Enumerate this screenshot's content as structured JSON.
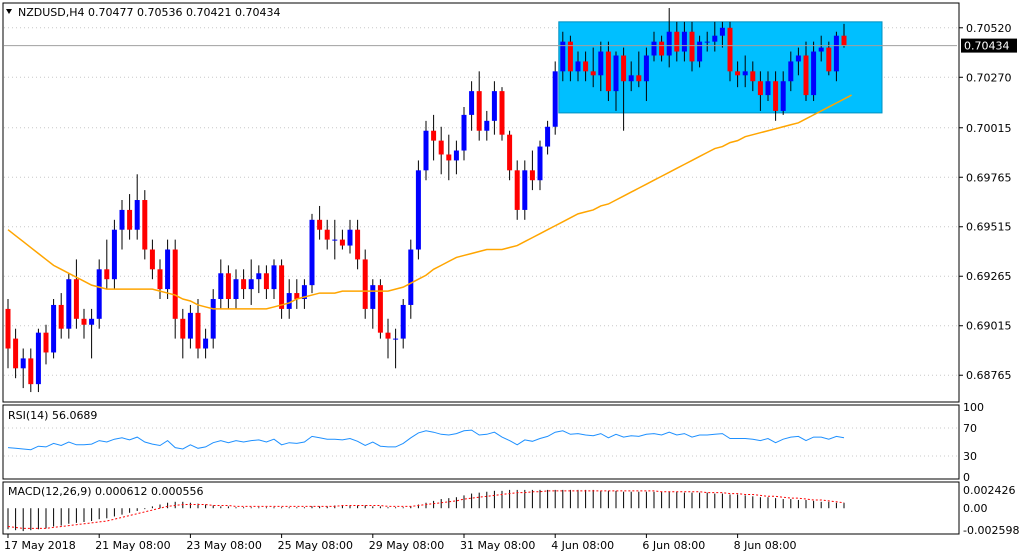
{
  "symbol_header": "NZDUSD,H4  0.70477 0.70536 0.70421 0.70434",
  "current_price_label": "0.70434",
  "colors": {
    "bull": "#0000ff",
    "bear": "#ff0000",
    "ma": "#ffa500",
    "rect": "#00bfff",
    "rsi": "#1e90ff",
    "macd_hist": "#000000",
    "macd_signal": "#ff0000",
    "grid": "#c8c8c8"
  },
  "rsi_label": "RSI(14) 56.0689",
  "rsi_scale": [
    "100",
    "70",
    "30",
    "0"
  ],
  "macd_label": "MACD(12,26,9) 0.000612 0.000556",
  "macd_scale": [
    "0.002426",
    "0.00",
    "-0.002598"
  ],
  "chart_data": {
    "type": "candlestick",
    "title": "NZDUSD,H4",
    "ylim": [
      0.6865,
      0.7063
    ],
    "y_ticks": [
      "0.70520",
      "0.70270",
      "0.70015",
      "0.69765",
      "0.69515",
      "0.69265",
      "0.69015",
      "0.68765"
    ],
    "x_ticks": [
      "17 May 2018",
      "21 May 08:00",
      "23 May 08:00",
      "25 May 08:00",
      "29 May 08:00",
      "31 May 08:00",
      "4 Jun 08:00",
      "6 Jun 08:00",
      "8 Jun 08:00"
    ],
    "consolidation_zone": [
      0.7009,
      0.7055
    ],
    "candles": [
      {
        "o": 0.691,
        "h": 0.6915,
        "l": 0.688,
        "c": 0.689
      },
      {
        "o": 0.6895,
        "h": 0.69,
        "l": 0.6875,
        "c": 0.688
      },
      {
        "o": 0.688,
        "h": 0.689,
        "l": 0.687,
        "c": 0.6885
      },
      {
        "o": 0.6885,
        "h": 0.689,
        "l": 0.6868,
        "c": 0.6872
      },
      {
        "o": 0.6872,
        "h": 0.69,
        "l": 0.6868,
        "c": 0.6898
      },
      {
        "o": 0.6898,
        "h": 0.6902,
        "l": 0.6882,
        "c": 0.6888
      },
      {
        "o": 0.6888,
        "h": 0.6915,
        "l": 0.6885,
        "c": 0.6912
      },
      {
        "o": 0.6912,
        "h": 0.6918,
        "l": 0.6895,
        "c": 0.69
      },
      {
        "o": 0.69,
        "h": 0.6928,
        "l": 0.6895,
        "c": 0.6925
      },
      {
        "o": 0.6925,
        "h": 0.6935,
        "l": 0.69,
        "c": 0.6905
      },
      {
        "o": 0.6905,
        "h": 0.691,
        "l": 0.6895,
        "c": 0.6902
      },
      {
        "o": 0.6902,
        "h": 0.691,
        "l": 0.6885,
        "c": 0.6905
      },
      {
        "o": 0.6905,
        "h": 0.6935,
        "l": 0.69,
        "c": 0.693
      },
      {
        "o": 0.693,
        "h": 0.6945,
        "l": 0.692,
        "c": 0.6925
      },
      {
        "o": 0.6925,
        "h": 0.6955,
        "l": 0.692,
        "c": 0.695
      },
      {
        "o": 0.695,
        "h": 0.6965,
        "l": 0.694,
        "c": 0.696
      },
      {
        "o": 0.696,
        "h": 0.6968,
        "l": 0.6945,
        "c": 0.695
      },
      {
        "o": 0.695,
        "h": 0.6978,
        "l": 0.6945,
        "c": 0.6965
      },
      {
        "o": 0.6965,
        "h": 0.697,
        "l": 0.6935,
        "c": 0.694
      },
      {
        "o": 0.694,
        "h": 0.6945,
        "l": 0.6925,
        "c": 0.693
      },
      {
        "o": 0.693,
        "h": 0.6935,
        "l": 0.6915,
        "c": 0.692
      },
      {
        "o": 0.692,
        "h": 0.6945,
        "l": 0.6915,
        "c": 0.694
      },
      {
        "o": 0.694,
        "h": 0.6945,
        "l": 0.6895,
        "c": 0.6905
      },
      {
        "o": 0.6905,
        "h": 0.691,
        "l": 0.6885,
        "c": 0.6895
      },
      {
        "o": 0.6895,
        "h": 0.6912,
        "l": 0.689,
        "c": 0.6908
      },
      {
        "o": 0.6908,
        "h": 0.6915,
        "l": 0.6885,
        "c": 0.689
      },
      {
        "o": 0.689,
        "h": 0.69,
        "l": 0.6885,
        "c": 0.6895
      },
      {
        "o": 0.6895,
        "h": 0.692,
        "l": 0.689,
        "c": 0.6915
      },
      {
        "o": 0.6915,
        "h": 0.6935,
        "l": 0.691,
        "c": 0.6928
      },
      {
        "o": 0.6928,
        "h": 0.6932,
        "l": 0.691,
        "c": 0.6915
      },
      {
        "o": 0.6915,
        "h": 0.693,
        "l": 0.691,
        "c": 0.6925
      },
      {
        "o": 0.6925,
        "h": 0.693,
        "l": 0.6915,
        "c": 0.692
      },
      {
        "o": 0.692,
        "h": 0.6935,
        "l": 0.6912,
        "c": 0.6925
      },
      {
        "o": 0.6925,
        "h": 0.6932,
        "l": 0.6918,
        "c": 0.6928
      },
      {
        "o": 0.6928,
        "h": 0.6932,
        "l": 0.6915,
        "c": 0.692
      },
      {
        "o": 0.692,
        "h": 0.6935,
        "l": 0.6915,
        "c": 0.6932
      },
      {
        "o": 0.6932,
        "h": 0.6935,
        "l": 0.6905,
        "c": 0.691
      },
      {
        "o": 0.691,
        "h": 0.6925,
        "l": 0.6905,
        "c": 0.6918
      },
      {
        "o": 0.6918,
        "h": 0.6925,
        "l": 0.691,
        "c": 0.6915
      },
      {
        "o": 0.6915,
        "h": 0.6925,
        "l": 0.691,
        "c": 0.6922
      },
      {
        "o": 0.6922,
        "h": 0.6958,
        "l": 0.6918,
        "c": 0.6955
      },
      {
        "o": 0.6955,
        "h": 0.6962,
        "l": 0.6945,
        "c": 0.695
      },
      {
        "o": 0.695,
        "h": 0.6955,
        "l": 0.694,
        "c": 0.6945
      },
      {
        "o": 0.6945,
        "h": 0.6955,
        "l": 0.6935,
        "c": 0.6945
      },
      {
        "o": 0.6945,
        "h": 0.695,
        "l": 0.694,
        "c": 0.6942
      },
      {
        "o": 0.6942,
        "h": 0.6955,
        "l": 0.6938,
        "c": 0.695
      },
      {
        "o": 0.695,
        "h": 0.6955,
        "l": 0.693,
        "c": 0.6935
      },
      {
        "o": 0.6935,
        "h": 0.694,
        "l": 0.6905,
        "c": 0.691
      },
      {
        "o": 0.691,
        "h": 0.6925,
        "l": 0.69,
        "c": 0.6922
      },
      {
        "o": 0.6922,
        "h": 0.6925,
        "l": 0.6895,
        "c": 0.6898
      },
      {
        "o": 0.6898,
        "h": 0.6905,
        "l": 0.6885,
        "c": 0.6895
      },
      {
        "o": 0.6895,
        "h": 0.69,
        "l": 0.688,
        "c": 0.6895
      },
      {
        "o": 0.6895,
        "h": 0.6915,
        "l": 0.689,
        "c": 0.6912
      },
      {
        "o": 0.6912,
        "h": 0.6945,
        "l": 0.6905,
        "c": 0.694
      },
      {
        "o": 0.694,
        "h": 0.6985,
        "l": 0.6935,
        "c": 0.698
      },
      {
        "o": 0.698,
        "h": 0.7005,
        "l": 0.6975,
        "c": 0.7
      },
      {
        "o": 0.7,
        "h": 0.7008,
        "l": 0.6985,
        "c": 0.6995
      },
      {
        "o": 0.6995,
        "h": 0.7002,
        "l": 0.6978,
        "c": 0.6988
      },
      {
        "o": 0.6988,
        "h": 0.6998,
        "l": 0.6975,
        "c": 0.6985
      },
      {
        "o": 0.6985,
        "h": 0.6995,
        "l": 0.6978,
        "c": 0.699
      },
      {
        "o": 0.699,
        "h": 0.7012,
        "l": 0.6985,
        "c": 0.7008
      },
      {
        "o": 0.7008,
        "h": 0.7025,
        "l": 0.7,
        "c": 0.702
      },
      {
        "o": 0.702,
        "h": 0.703,
        "l": 0.6995,
        "c": 0.7
      },
      {
        "o": 0.7,
        "h": 0.701,
        "l": 0.6995,
        "c": 0.7005
      },
      {
        "o": 0.7005,
        "h": 0.7025,
        "l": 0.6998,
        "c": 0.702
      },
      {
        "o": 0.702,
        "h": 0.7022,
        "l": 0.6995,
        "c": 0.6998
      },
      {
        "o": 0.6998,
        "h": 0.7,
        "l": 0.6975,
        "c": 0.698
      },
      {
        "o": 0.698,
        "h": 0.6985,
        "l": 0.6955,
        "c": 0.696
      },
      {
        "o": 0.696,
        "h": 0.6985,
        "l": 0.6955,
        "c": 0.698
      },
      {
        "o": 0.698,
        "h": 0.699,
        "l": 0.697,
        "c": 0.6975
      },
      {
        "o": 0.6975,
        "h": 0.6995,
        "l": 0.697,
        "c": 0.6992
      },
      {
        "o": 0.6992,
        "h": 0.7005,
        "l": 0.6988,
        "c": 0.7002
      },
      {
        "o": 0.7002,
        "h": 0.7035,
        "l": 0.6998,
        "c": 0.703
      },
      {
        "o": 0.703,
        "h": 0.705,
        "l": 0.7025,
        "c": 0.7045
      },
      {
        "o": 0.7045,
        "h": 0.7048,
        "l": 0.7025,
        "c": 0.703
      },
      {
        "o": 0.703,
        "h": 0.704,
        "l": 0.7025,
        "c": 0.7035
      },
      {
        "o": 0.7035,
        "h": 0.704,
        "l": 0.7025,
        "c": 0.703
      },
      {
        "o": 0.703,
        "h": 0.7042,
        "l": 0.7022,
        "c": 0.7028
      },
      {
        "o": 0.7028,
        "h": 0.7045,
        "l": 0.702,
        "c": 0.704
      },
      {
        "o": 0.704,
        "h": 0.7045,
        "l": 0.7015,
        "c": 0.702
      },
      {
        "o": 0.702,
        "h": 0.704,
        "l": 0.701,
        "c": 0.7038
      },
      {
        "o": 0.7038,
        "h": 0.7042,
        "l": 0.7,
        "c": 0.7025
      },
      {
        "o": 0.7025,
        "h": 0.7035,
        "l": 0.702,
        "c": 0.7028
      },
      {
        "o": 0.7028,
        "h": 0.704,
        "l": 0.7022,
        "c": 0.7025
      },
      {
        "o": 0.7025,
        "h": 0.7042,
        "l": 0.7015,
        "c": 0.7038
      },
      {
        "o": 0.7038,
        "h": 0.705,
        "l": 0.7035,
        "c": 0.7045
      },
      {
        "o": 0.7045,
        "h": 0.7048,
        "l": 0.7035,
        "c": 0.7038
      },
      {
        "o": 0.7038,
        "h": 0.7062,
        "l": 0.7032,
        "c": 0.705
      },
      {
        "o": 0.705,
        "h": 0.7055,
        "l": 0.7035,
        "c": 0.704
      },
      {
        "o": 0.704,
        "h": 0.7055,
        "l": 0.7035,
        "c": 0.705
      },
      {
        "o": 0.705,
        "h": 0.7055,
        "l": 0.703,
        "c": 0.7035
      },
      {
        "o": 0.7035,
        "h": 0.7048,
        "l": 0.7032,
        "c": 0.7045
      },
      {
        "o": 0.7045,
        "h": 0.705,
        "l": 0.704,
        "c": 0.7045
      },
      {
        "o": 0.7045,
        "h": 0.7055,
        "l": 0.704,
        "c": 0.7048
      },
      {
        "o": 0.7048,
        "h": 0.7055,
        "l": 0.7042,
        "c": 0.7052
      },
      {
        "o": 0.7052,
        "h": 0.7055,
        "l": 0.7025,
        "c": 0.703
      },
      {
        "o": 0.703,
        "h": 0.7035,
        "l": 0.7022,
        "c": 0.7028
      },
      {
        "o": 0.7028,
        "h": 0.7038,
        "l": 0.7022,
        "c": 0.703
      },
      {
        "o": 0.703,
        "h": 0.7035,
        "l": 0.702,
        "c": 0.7025
      },
      {
        "o": 0.7025,
        "h": 0.703,
        "l": 0.701,
        "c": 0.7018
      },
      {
        "o": 0.7018,
        "h": 0.703,
        "l": 0.7015,
        "c": 0.7025
      },
      {
        "o": 0.7025,
        "h": 0.703,
        "l": 0.7005,
        "c": 0.701
      },
      {
        "o": 0.701,
        "h": 0.703,
        "l": 0.7008,
        "c": 0.7025
      },
      {
        "o": 0.7025,
        "h": 0.704,
        "l": 0.702,
        "c": 0.7035
      },
      {
        "o": 0.7035,
        "h": 0.7042,
        "l": 0.7028,
        "c": 0.7038
      },
      {
        "o": 0.7038,
        "h": 0.7045,
        "l": 0.7015,
        "c": 0.7018
      },
      {
        "o": 0.7018,
        "h": 0.7045,
        "l": 0.7015,
        "c": 0.704
      },
      {
        "o": 0.704,
        "h": 0.7048,
        "l": 0.7035,
        "c": 0.7042
      },
      {
        "o": 0.7042,
        "h": 0.7045,
        "l": 0.7028,
        "c": 0.703
      },
      {
        "o": 0.703,
        "h": 0.705,
        "l": 0.7025,
        "c": 0.7048
      },
      {
        "o": 0.7048,
        "h": 0.7054,
        "l": 0.7042,
        "c": 0.7043
      }
    ],
    "moving_average": [
      0.695,
      0.6947,
      0.6944,
      0.6941,
      0.6938,
      0.6935,
      0.6932,
      0.693,
      0.6928,
      0.6926,
      0.6924,
      0.6922,
      0.6921,
      0.692,
      0.692,
      0.692,
      0.692,
      0.692,
      0.692,
      0.692,
      0.6919,
      0.6918,
      0.6917,
      0.6915,
      0.6914,
      0.6912,
      0.6911,
      0.691,
      0.691,
      0.691,
      0.691,
      0.691,
      0.691,
      0.691,
      0.691,
      0.6911,
      0.6912,
      0.6913,
      0.6915,
      0.6916,
      0.6917,
      0.6918,
      0.6918,
      0.6918,
      0.6919,
      0.6919,
      0.6919,
      0.6919,
      0.6919,
      0.6919,
      0.6919,
      0.692,
      0.6921,
      0.6923,
      0.6925,
      0.6927,
      0.693,
      0.6932,
      0.6934,
      0.6936,
      0.6937,
      0.6938,
      0.6939,
      0.694,
      0.694,
      0.694,
      0.6941,
      0.6942,
      0.6944,
      0.6946,
      0.6948,
      0.695,
      0.6952,
      0.6954,
      0.6956,
      0.6958,
      0.6959,
      0.696,
      0.6962,
      0.6963,
      0.6965,
      0.6967,
      0.6969,
      0.6971,
      0.6973,
      0.6975,
      0.6977,
      0.6979,
      0.6981,
      0.6983,
      0.6985,
      0.6987,
      0.6989,
      0.6991,
      0.6992,
      0.6994,
      0.6995,
      0.6997,
      0.6998,
      0.6999,
      0.7,
      0.7001,
      0.7002,
      0.7003,
      0.7004,
      0.7006,
      0.7008,
      0.701,
      0.7012,
      0.7014,
      0.7016,
      0.7018
    ],
    "rsi": [
      42,
      41,
      40,
      39,
      44,
      43,
      48,
      45,
      50,
      46,
      46,
      47,
      52,
      50,
      54,
      56,
      53,
      57,
      50,
      47,
      45,
      52,
      42,
      40,
      46,
      41,
      43,
      49,
      52,
      49,
      52,
      50,
      52,
      53,
      50,
      54,
      46,
      49,
      48,
      50,
      58,
      56,
      54,
      54,
      53,
      55,
      51,
      45,
      50,
      44,
      43,
      43,
      48,
      56,
      63,
      66,
      64,
      61,
      60,
      62,
      66,
      67,
      60,
      61,
      64,
      57,
      52,
      46,
      53,
      51,
      55,
      58,
      64,
      66,
      61,
      62,
      60,
      59,
      62,
      56,
      61,
      57,
      59,
      58,
      61,
      62,
      60,
      64,
      60,
      62,
      57,
      60,
      60,
      61,
      62,
      55,
      55,
      55,
      54,
      52,
      55,
      49,
      54,
      57,
      58,
      52,
      57,
      57,
      54,
      58,
      56
    ],
    "macd_hist": [
      -0.0023,
      -0.0024,
      -0.0025,
      -0.0024,
      -0.0023,
      -0.0022,
      -0.002,
      -0.0019,
      -0.0017,
      -0.0016,
      -0.0015,
      -0.0014,
      -0.0012,
      -0.0011,
      -0.0009,
      -0.0007,
      -0.0005,
      -0.0003,
      -0.0001,
      0.0002,
      0.0004,
      0.0006,
      0.0007,
      0.0007,
      0.0006,
      0.0005,
      0.0004,
      0.0003,
      0.0002,
      0.0002,
      0.0001,
      0.0001,
      0.0001,
      0.0001,
      0.0001,
      0.0001,
      0.0001,
      0.0001,
      0.0001,
      0.0001,
      0.0002,
      0.0002,
      0.0002,
      0.0003,
      0.0003,
      0.0003,
      0.0003,
      0.0003,
      0.0002,
      0.0002,
      0.0001,
      0.0001,
      0.0001,
      0.0002,
      0.0004,
      0.0006,
      0.0008,
      0.001,
      0.0011,
      0.0012,
      0.0014,
      0.0016,
      0.0017,
      0.0018,
      0.0019,
      0.0019,
      0.002,
      0.002,
      0.002,
      0.002,
      0.002,
      0.002,
      0.002,
      0.002,
      0.002,
      0.002,
      0.002,
      0.002,
      0.0019,
      0.0019,
      0.0019,
      0.0018,
      0.0018,
      0.0018,
      0.0018,
      0.0018,
      0.0018,
      0.0018,
      0.0018,
      0.0017,
      0.0017,
      0.0017,
      0.0017,
      0.0016,
      0.0016,
      0.0015,
      0.0015,
      0.0014,
      0.0013,
      0.0012,
      0.0012,
      0.0011,
      0.001,
      0.001,
      0.0009,
      0.0009,
      0.0008,
      0.0007,
      0.0007,
      0.0006,
      0.0006
    ],
    "macd_signal": [
      -0.002,
      -0.0021,
      -0.0022,
      -0.0022,
      -0.0022,
      -0.0022,
      -0.0021,
      -0.002,
      -0.0019,
      -0.0018,
      -0.0017,
      -0.0016,
      -0.0015,
      -0.0014,
      -0.0012,
      -0.001,
      -0.0008,
      -0.0006,
      -0.0004,
      -0.0002,
      0.0,
      0.0002,
      0.0003,
      0.0004,
      0.0004,
      0.0004,
      0.0004,
      0.0003,
      0.0003,
      0.0003,
      0.0002,
      0.0002,
      0.0002,
      0.0002,
      0.0002,
      0.0002,
      0.0002,
      0.0002,
      0.0002,
      0.0002,
      0.0002,
      0.0002,
      0.0002,
      0.0002,
      0.0003,
      0.0003,
      0.0003,
      0.0003,
      0.0003,
      0.0003,
      0.0002,
      0.0002,
      0.0002,
      0.0002,
      0.0003,
      0.0004,
      0.0005,
      0.0006,
      0.0007,
      0.0008,
      0.001,
      0.0011,
      0.0012,
      0.0013,
      0.0014,
      0.0015,
      0.0016,
      0.0017,
      0.0017,
      0.0018,
      0.0018,
      0.0019,
      0.0019,
      0.0019,
      0.0019,
      0.0019,
      0.0019,
      0.0019,
      0.0019,
      0.0019,
      0.0019,
      0.0019,
      0.0019,
      0.0019,
      0.0019,
      0.0019,
      0.0018,
      0.0018,
      0.0018,
      0.0018,
      0.0018,
      0.0018,
      0.0017,
      0.0017,
      0.0017,
      0.0016,
      0.0016,
      0.0015,
      0.0015,
      0.0014,
      0.0013,
      0.0013,
      0.0012,
      0.0011,
      0.0011,
      0.001,
      0.0009,
      0.0009,
      0.0008,
      0.0007,
      0.0006
    ]
  }
}
